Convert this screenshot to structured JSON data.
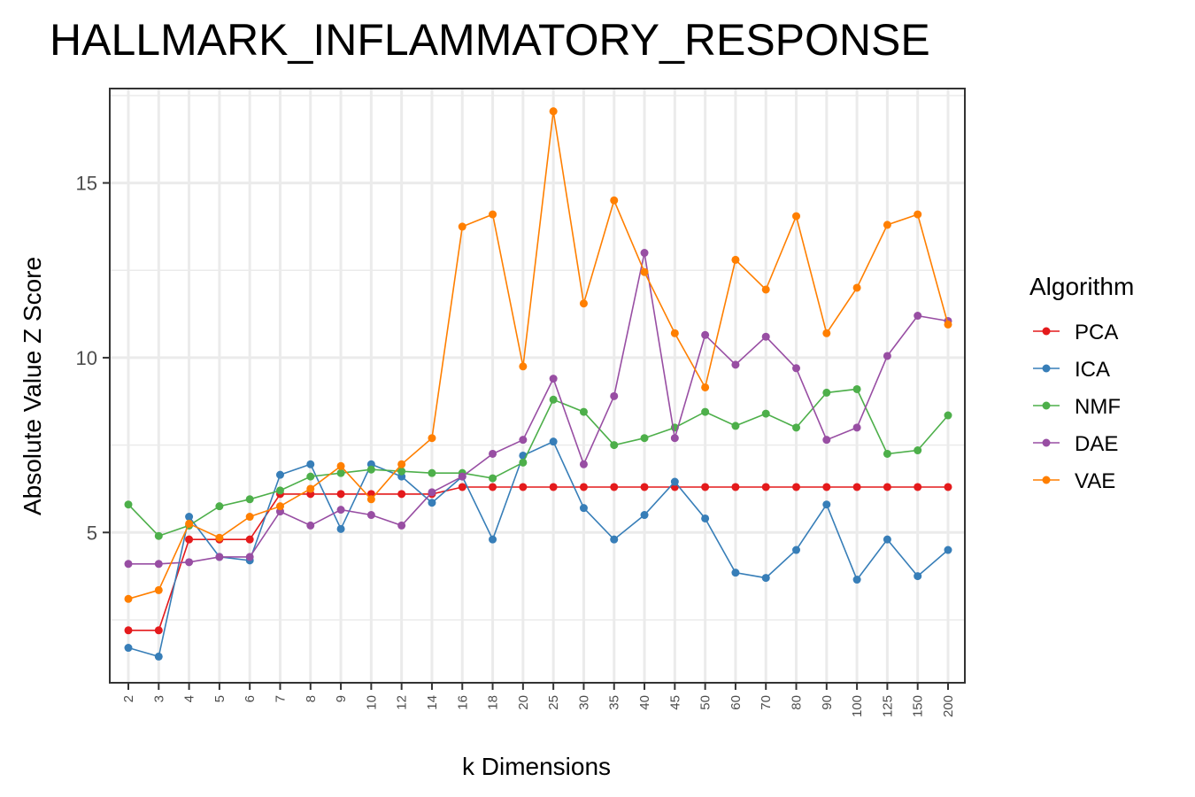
{
  "chart_data": {
    "type": "line",
    "title": "HALLMARK_INFLAMMATORY_RESPONSE",
    "xlabel": "k Dimensions",
    "ylabel": "Absolute Value Z Score",
    "categories": [
      "2",
      "3",
      "4",
      "5",
      "6",
      "7",
      "8",
      "9",
      "10",
      "12",
      "14",
      "16",
      "18",
      "20",
      "25",
      "30",
      "35",
      "40",
      "45",
      "50",
      "60",
      "70",
      "80",
      "90",
      "100",
      "125",
      "150",
      "200"
    ],
    "ylim": [
      0.7,
      17.7
    ],
    "yticks": [
      5,
      10,
      15
    ],
    "grid": true,
    "legend": {
      "title": "Algorithm",
      "position": "right"
    },
    "series": [
      {
        "name": "PCA",
        "color": "#e41a1c",
        "values": [
          2.2,
          2.2,
          4.8,
          4.8,
          4.8,
          6.1,
          6.1,
          6.1,
          6.1,
          6.1,
          6.1,
          6.3,
          6.3,
          6.3,
          6.3,
          6.3,
          6.3,
          6.3,
          6.3,
          6.3,
          6.3,
          6.3,
          6.3,
          6.3,
          6.3,
          6.3,
          6.3,
          6.3
        ]
      },
      {
        "name": "ICA",
        "color": "#377eb8",
        "values": [
          1.7,
          1.45,
          5.45,
          4.3,
          4.2,
          6.65,
          6.95,
          5.1,
          6.95,
          6.6,
          5.85,
          6.6,
          4.8,
          7.2,
          7.6,
          5.7,
          4.8,
          5.5,
          6.45,
          5.4,
          3.85,
          3.7,
          4.5,
          5.8,
          3.65,
          4.8,
          3.75,
          4.5
        ]
      },
      {
        "name": "NMF",
        "color": "#4daf4a",
        "values": [
          5.8,
          4.9,
          5.2,
          5.75,
          5.95,
          6.2,
          6.6,
          6.7,
          6.8,
          6.75,
          6.7,
          6.7,
          6.55,
          7.0,
          8.8,
          8.45,
          7.5,
          7.7,
          8.0,
          8.45,
          8.05,
          8.4,
          8.0,
          9.0,
          9.1,
          7.25,
          7.35,
          8.35
        ]
      },
      {
        "name": "DAE",
        "color": "#984ea3",
        "values": [
          4.1,
          4.1,
          4.15,
          4.3,
          4.3,
          5.6,
          5.2,
          5.65,
          5.5,
          5.2,
          6.15,
          6.6,
          7.25,
          7.65,
          9.4,
          6.95,
          8.9,
          13.0,
          7.7,
          10.65,
          9.8,
          10.6,
          9.7,
          7.65,
          8.0,
          10.05,
          11.2,
          11.05
        ]
      },
      {
        "name": "VAE",
        "color": "#ff7f00",
        "values": [
          3.1,
          3.35,
          5.25,
          4.85,
          5.45,
          5.75,
          6.25,
          6.9,
          5.95,
          6.95,
          7.7,
          13.75,
          14.1,
          9.75,
          17.05,
          11.55,
          14.5,
          12.45,
          10.7,
          9.15,
          12.8,
          11.95,
          14.05,
          10.7,
          12.0,
          13.8,
          14.1,
          10.95
        ]
      }
    ]
  }
}
